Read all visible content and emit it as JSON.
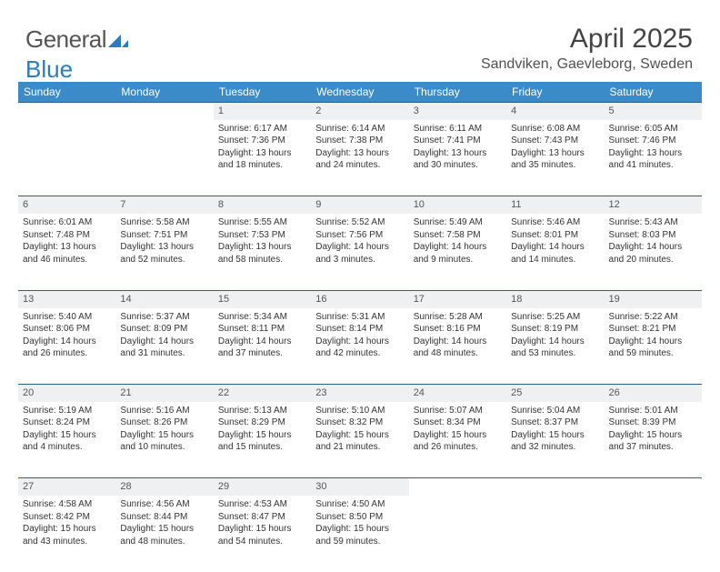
{
  "logo": {
    "text1": "General",
    "text2": "Blue"
  },
  "title": "April 2025",
  "location": "Sandviken, Gaevleborg, Sweden",
  "header_bg": "#3b8bc9",
  "header_fg": "#ffffff",
  "daynum_bg": "#eef0f1",
  "border_color": "#2a5f8a",
  "dayNames": [
    "Sunday",
    "Monday",
    "Tuesday",
    "Wednesday",
    "Thursday",
    "Friday",
    "Saturday"
  ],
  "weeks": [
    {
      "nums": [
        "",
        "",
        "1",
        "2",
        "3",
        "4",
        "5"
      ],
      "cells": [
        null,
        null,
        {
          "sr": "Sunrise: 6:17 AM",
          "ss": "Sunset: 7:36 PM",
          "d1": "Daylight: 13 hours",
          "d2": "and 18 minutes."
        },
        {
          "sr": "Sunrise: 6:14 AM",
          "ss": "Sunset: 7:38 PM",
          "d1": "Daylight: 13 hours",
          "d2": "and 24 minutes."
        },
        {
          "sr": "Sunrise: 6:11 AM",
          "ss": "Sunset: 7:41 PM",
          "d1": "Daylight: 13 hours",
          "d2": "and 30 minutes."
        },
        {
          "sr": "Sunrise: 6:08 AM",
          "ss": "Sunset: 7:43 PM",
          "d1": "Daylight: 13 hours",
          "d2": "and 35 minutes."
        },
        {
          "sr": "Sunrise: 6:05 AM",
          "ss": "Sunset: 7:46 PM",
          "d1": "Daylight: 13 hours",
          "d2": "and 41 minutes."
        }
      ]
    },
    {
      "nums": [
        "6",
        "7",
        "8",
        "9",
        "10",
        "11",
        "12"
      ],
      "cells": [
        {
          "sr": "Sunrise: 6:01 AM",
          "ss": "Sunset: 7:48 PM",
          "d1": "Daylight: 13 hours",
          "d2": "and 46 minutes."
        },
        {
          "sr": "Sunrise: 5:58 AM",
          "ss": "Sunset: 7:51 PM",
          "d1": "Daylight: 13 hours",
          "d2": "and 52 minutes."
        },
        {
          "sr": "Sunrise: 5:55 AM",
          "ss": "Sunset: 7:53 PM",
          "d1": "Daylight: 13 hours",
          "d2": "and 58 minutes."
        },
        {
          "sr": "Sunrise: 5:52 AM",
          "ss": "Sunset: 7:56 PM",
          "d1": "Daylight: 14 hours",
          "d2": "and 3 minutes."
        },
        {
          "sr": "Sunrise: 5:49 AM",
          "ss": "Sunset: 7:58 PM",
          "d1": "Daylight: 14 hours",
          "d2": "and 9 minutes."
        },
        {
          "sr": "Sunrise: 5:46 AM",
          "ss": "Sunset: 8:01 PM",
          "d1": "Daylight: 14 hours",
          "d2": "and 14 minutes."
        },
        {
          "sr": "Sunrise: 5:43 AM",
          "ss": "Sunset: 8:03 PM",
          "d1": "Daylight: 14 hours",
          "d2": "and 20 minutes."
        }
      ]
    },
    {
      "nums": [
        "13",
        "14",
        "15",
        "16",
        "17",
        "18",
        "19"
      ],
      "cells": [
        {
          "sr": "Sunrise: 5:40 AM",
          "ss": "Sunset: 8:06 PM",
          "d1": "Daylight: 14 hours",
          "d2": "and 26 minutes."
        },
        {
          "sr": "Sunrise: 5:37 AM",
          "ss": "Sunset: 8:09 PM",
          "d1": "Daylight: 14 hours",
          "d2": "and 31 minutes."
        },
        {
          "sr": "Sunrise: 5:34 AM",
          "ss": "Sunset: 8:11 PM",
          "d1": "Daylight: 14 hours",
          "d2": "and 37 minutes."
        },
        {
          "sr": "Sunrise: 5:31 AM",
          "ss": "Sunset: 8:14 PM",
          "d1": "Daylight: 14 hours",
          "d2": "and 42 minutes."
        },
        {
          "sr": "Sunrise: 5:28 AM",
          "ss": "Sunset: 8:16 PM",
          "d1": "Daylight: 14 hours",
          "d2": "and 48 minutes."
        },
        {
          "sr": "Sunrise: 5:25 AM",
          "ss": "Sunset: 8:19 PM",
          "d1": "Daylight: 14 hours",
          "d2": "and 53 minutes."
        },
        {
          "sr": "Sunrise: 5:22 AM",
          "ss": "Sunset: 8:21 PM",
          "d1": "Daylight: 14 hours",
          "d2": "and 59 minutes."
        }
      ]
    },
    {
      "nums": [
        "20",
        "21",
        "22",
        "23",
        "24",
        "25",
        "26"
      ],
      "cells": [
        {
          "sr": "Sunrise: 5:19 AM",
          "ss": "Sunset: 8:24 PM",
          "d1": "Daylight: 15 hours",
          "d2": "and 4 minutes."
        },
        {
          "sr": "Sunrise: 5:16 AM",
          "ss": "Sunset: 8:26 PM",
          "d1": "Daylight: 15 hours",
          "d2": "and 10 minutes."
        },
        {
          "sr": "Sunrise: 5:13 AM",
          "ss": "Sunset: 8:29 PM",
          "d1": "Daylight: 15 hours",
          "d2": "and 15 minutes."
        },
        {
          "sr": "Sunrise: 5:10 AM",
          "ss": "Sunset: 8:32 PM",
          "d1": "Daylight: 15 hours",
          "d2": "and 21 minutes."
        },
        {
          "sr": "Sunrise: 5:07 AM",
          "ss": "Sunset: 8:34 PM",
          "d1": "Daylight: 15 hours",
          "d2": "and 26 minutes."
        },
        {
          "sr": "Sunrise: 5:04 AM",
          "ss": "Sunset: 8:37 PM",
          "d1": "Daylight: 15 hours",
          "d2": "and 32 minutes."
        },
        {
          "sr": "Sunrise: 5:01 AM",
          "ss": "Sunset: 8:39 PM",
          "d1": "Daylight: 15 hours",
          "d2": "and 37 minutes."
        }
      ]
    },
    {
      "nums": [
        "27",
        "28",
        "29",
        "30",
        "",
        "",
        ""
      ],
      "cells": [
        {
          "sr": "Sunrise: 4:58 AM",
          "ss": "Sunset: 8:42 PM",
          "d1": "Daylight: 15 hours",
          "d2": "and 43 minutes."
        },
        {
          "sr": "Sunrise: 4:56 AM",
          "ss": "Sunset: 8:44 PM",
          "d1": "Daylight: 15 hours",
          "d2": "and 48 minutes."
        },
        {
          "sr": "Sunrise: 4:53 AM",
          "ss": "Sunset: 8:47 PM",
          "d1": "Daylight: 15 hours",
          "d2": "and 54 minutes."
        },
        {
          "sr": "Sunrise: 4:50 AM",
          "ss": "Sunset: 8:50 PM",
          "d1": "Daylight: 15 hours",
          "d2": "and 59 minutes."
        },
        null,
        null,
        null
      ]
    }
  ]
}
